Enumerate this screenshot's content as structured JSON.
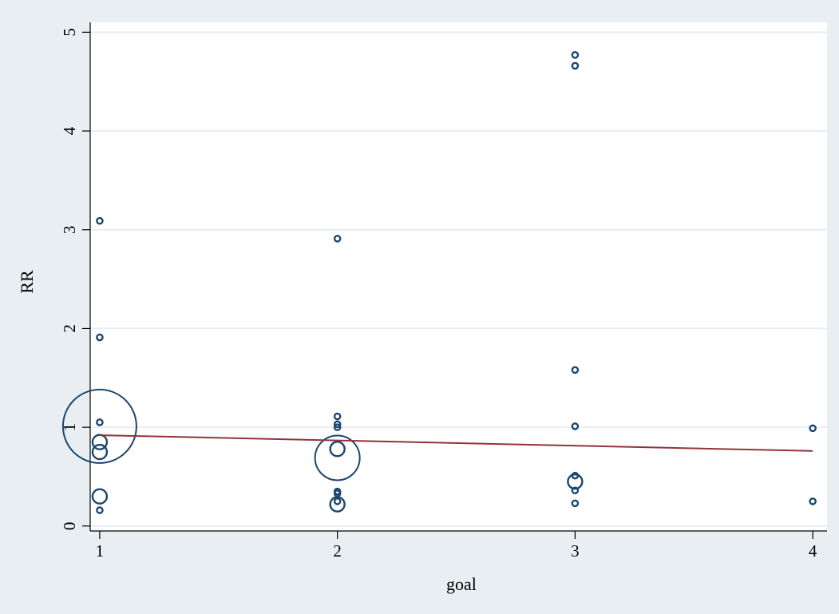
{
  "colors": {
    "outer_background": "#e8eef2",
    "plot_background": "#ffffff",
    "gridline": "#e8eef2",
    "marker_stroke": "#1a476f",
    "fit_line": "#90353b",
    "axis": "#000000"
  },
  "chart_data": {
    "type": "scatter",
    "title": "",
    "xlabel": "goal",
    "ylabel": "RR",
    "xlim": [
      0.96,
      4.06
    ],
    "ylim": [
      -0.05,
      5.1
    ],
    "xticks": [
      1,
      2,
      3,
      4
    ],
    "yticks": [
      0,
      1,
      2,
      3,
      4,
      5
    ],
    "grid": "horizontal",
    "legend": "none",
    "marker": "hollow circle, size proportional to weight",
    "points": [
      {
        "x": 1,
        "y": 3.09,
        "size": "small"
      },
      {
        "x": 1,
        "y": 1.91,
        "size": "small"
      },
      {
        "x": 1,
        "y": 1.05,
        "size": "small"
      },
      {
        "x": 1,
        "y": 1.01,
        "size": "xlarge"
      },
      {
        "x": 1,
        "y": 0.85,
        "size": "medium"
      },
      {
        "x": 1,
        "y": 0.75,
        "size": "medium"
      },
      {
        "x": 1,
        "y": 0.3,
        "size": "medium"
      },
      {
        "x": 1,
        "y": 0.16,
        "size": "small"
      },
      {
        "x": 2,
        "y": 2.91,
        "size": "small"
      },
      {
        "x": 2,
        "y": 1.11,
        "size": "small"
      },
      {
        "x": 2,
        "y": 1.03,
        "size": "small"
      },
      {
        "x": 2,
        "y": 1.0,
        "size": "small"
      },
      {
        "x": 2,
        "y": 0.78,
        "size": "medium"
      },
      {
        "x": 2,
        "y": 0.69,
        "size": "large"
      },
      {
        "x": 2,
        "y": 0.35,
        "size": "small"
      },
      {
        "x": 2,
        "y": 0.33,
        "size": "small"
      },
      {
        "x": 2,
        "y": 0.25,
        "size": "small"
      },
      {
        "x": 2,
        "y": 0.22,
        "size": "medium"
      },
      {
        "x": 3,
        "y": 4.77,
        "size": "small"
      },
      {
        "x": 3,
        "y": 4.66,
        "size": "small"
      },
      {
        "x": 3,
        "y": 1.58,
        "size": "small"
      },
      {
        "x": 3,
        "y": 1.01,
        "size": "small"
      },
      {
        "x": 3,
        "y": 0.51,
        "size": "small"
      },
      {
        "x": 3,
        "y": 0.45,
        "size": "medium"
      },
      {
        "x": 3,
        "y": 0.36,
        "size": "small"
      },
      {
        "x": 3,
        "y": 0.23,
        "size": "small"
      },
      {
        "x": 4,
        "y": 0.99,
        "size": "small"
      },
      {
        "x": 4,
        "y": 0.25,
        "size": "small"
      }
    ],
    "fit_line": {
      "x": [
        1,
        4
      ],
      "y": [
        0.92,
        0.76
      ]
    }
  }
}
